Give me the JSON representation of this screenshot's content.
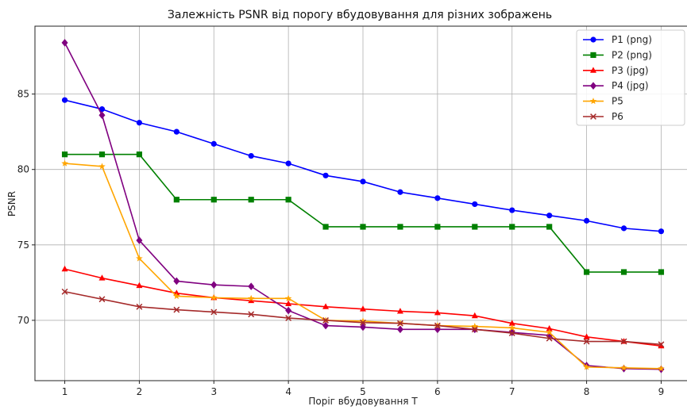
{
  "chart_data": {
    "type": "line",
    "title": "Залежність PSNR від порогу вбудовування для різних зображень",
    "xlabel": "Поріг вбудовування T",
    "ylabel": "PSNR",
    "xlim": [
      0.6,
      9.4
    ],
    "ylim": [
      66.0,
      89.5
    ],
    "xticks": [
      1,
      2,
      3,
      4,
      5,
      6,
      7,
      8,
      9
    ],
    "yticks": [
      70,
      75,
      80,
      85
    ],
    "grid": true,
    "legend_position": "top-right",
    "x": [
      1,
      1.5,
      2,
      2.5,
      3,
      3.5,
      4,
      4.5,
      5,
      5.5,
      6,
      6.5,
      7,
      7.5,
      8,
      8.5,
      9
    ],
    "series": [
      {
        "name": "P1 (png)",
        "color": "#0000ff",
        "marker": "circle",
        "values": [
          84.6,
          84.0,
          83.1,
          82.5,
          81.7,
          80.9,
          80.4,
          79.6,
          79.2,
          78.5,
          78.1,
          77.7,
          77.3,
          76.95,
          76.6,
          76.1,
          75.9
        ]
      },
      {
        "name": "P2 (png)",
        "color": "#008000",
        "marker": "square",
        "values": [
          81.0,
          81.0,
          81.0,
          78.0,
          78.0,
          78.0,
          78.0,
          76.2,
          76.2,
          76.2,
          76.2,
          76.2,
          76.2,
          76.2,
          73.2,
          73.2,
          73.2
        ]
      },
      {
        "name": "P3 (jpg)",
        "color": "#ff0000",
        "marker": "triangle",
        "values": [
          73.4,
          72.8,
          72.3,
          71.8,
          71.5,
          71.3,
          71.1,
          70.9,
          70.75,
          70.6,
          70.5,
          70.3,
          69.8,
          69.45,
          68.9,
          68.6,
          68.3
        ]
      },
      {
        "name": "P4 (jpg)",
        "color": "#800080",
        "marker": "diamond",
        "values": [
          88.4,
          83.6,
          75.3,
          72.6,
          72.35,
          72.25,
          70.65,
          69.65,
          69.55,
          69.4,
          69.4,
          69.4,
          69.2,
          69.0,
          67.0,
          66.8,
          66.75
        ]
      },
      {
        "name": "P5",
        "color": "#ffa500",
        "marker": "star",
        "values": [
          80.4,
          80.2,
          74.1,
          71.6,
          71.5,
          71.45,
          71.45,
          70.0,
          69.95,
          69.8,
          69.65,
          69.6,
          69.5,
          69.2,
          66.9,
          66.85,
          66.8
        ]
      },
      {
        "name": "P6",
        "color": "#a52a2a",
        "marker": "x",
        "values": [
          71.9,
          71.4,
          70.9,
          70.7,
          70.55,
          70.4,
          70.15,
          70.0,
          69.85,
          69.8,
          69.65,
          69.4,
          69.15,
          68.8,
          68.6,
          68.6,
          68.4
        ]
      }
    ]
  }
}
